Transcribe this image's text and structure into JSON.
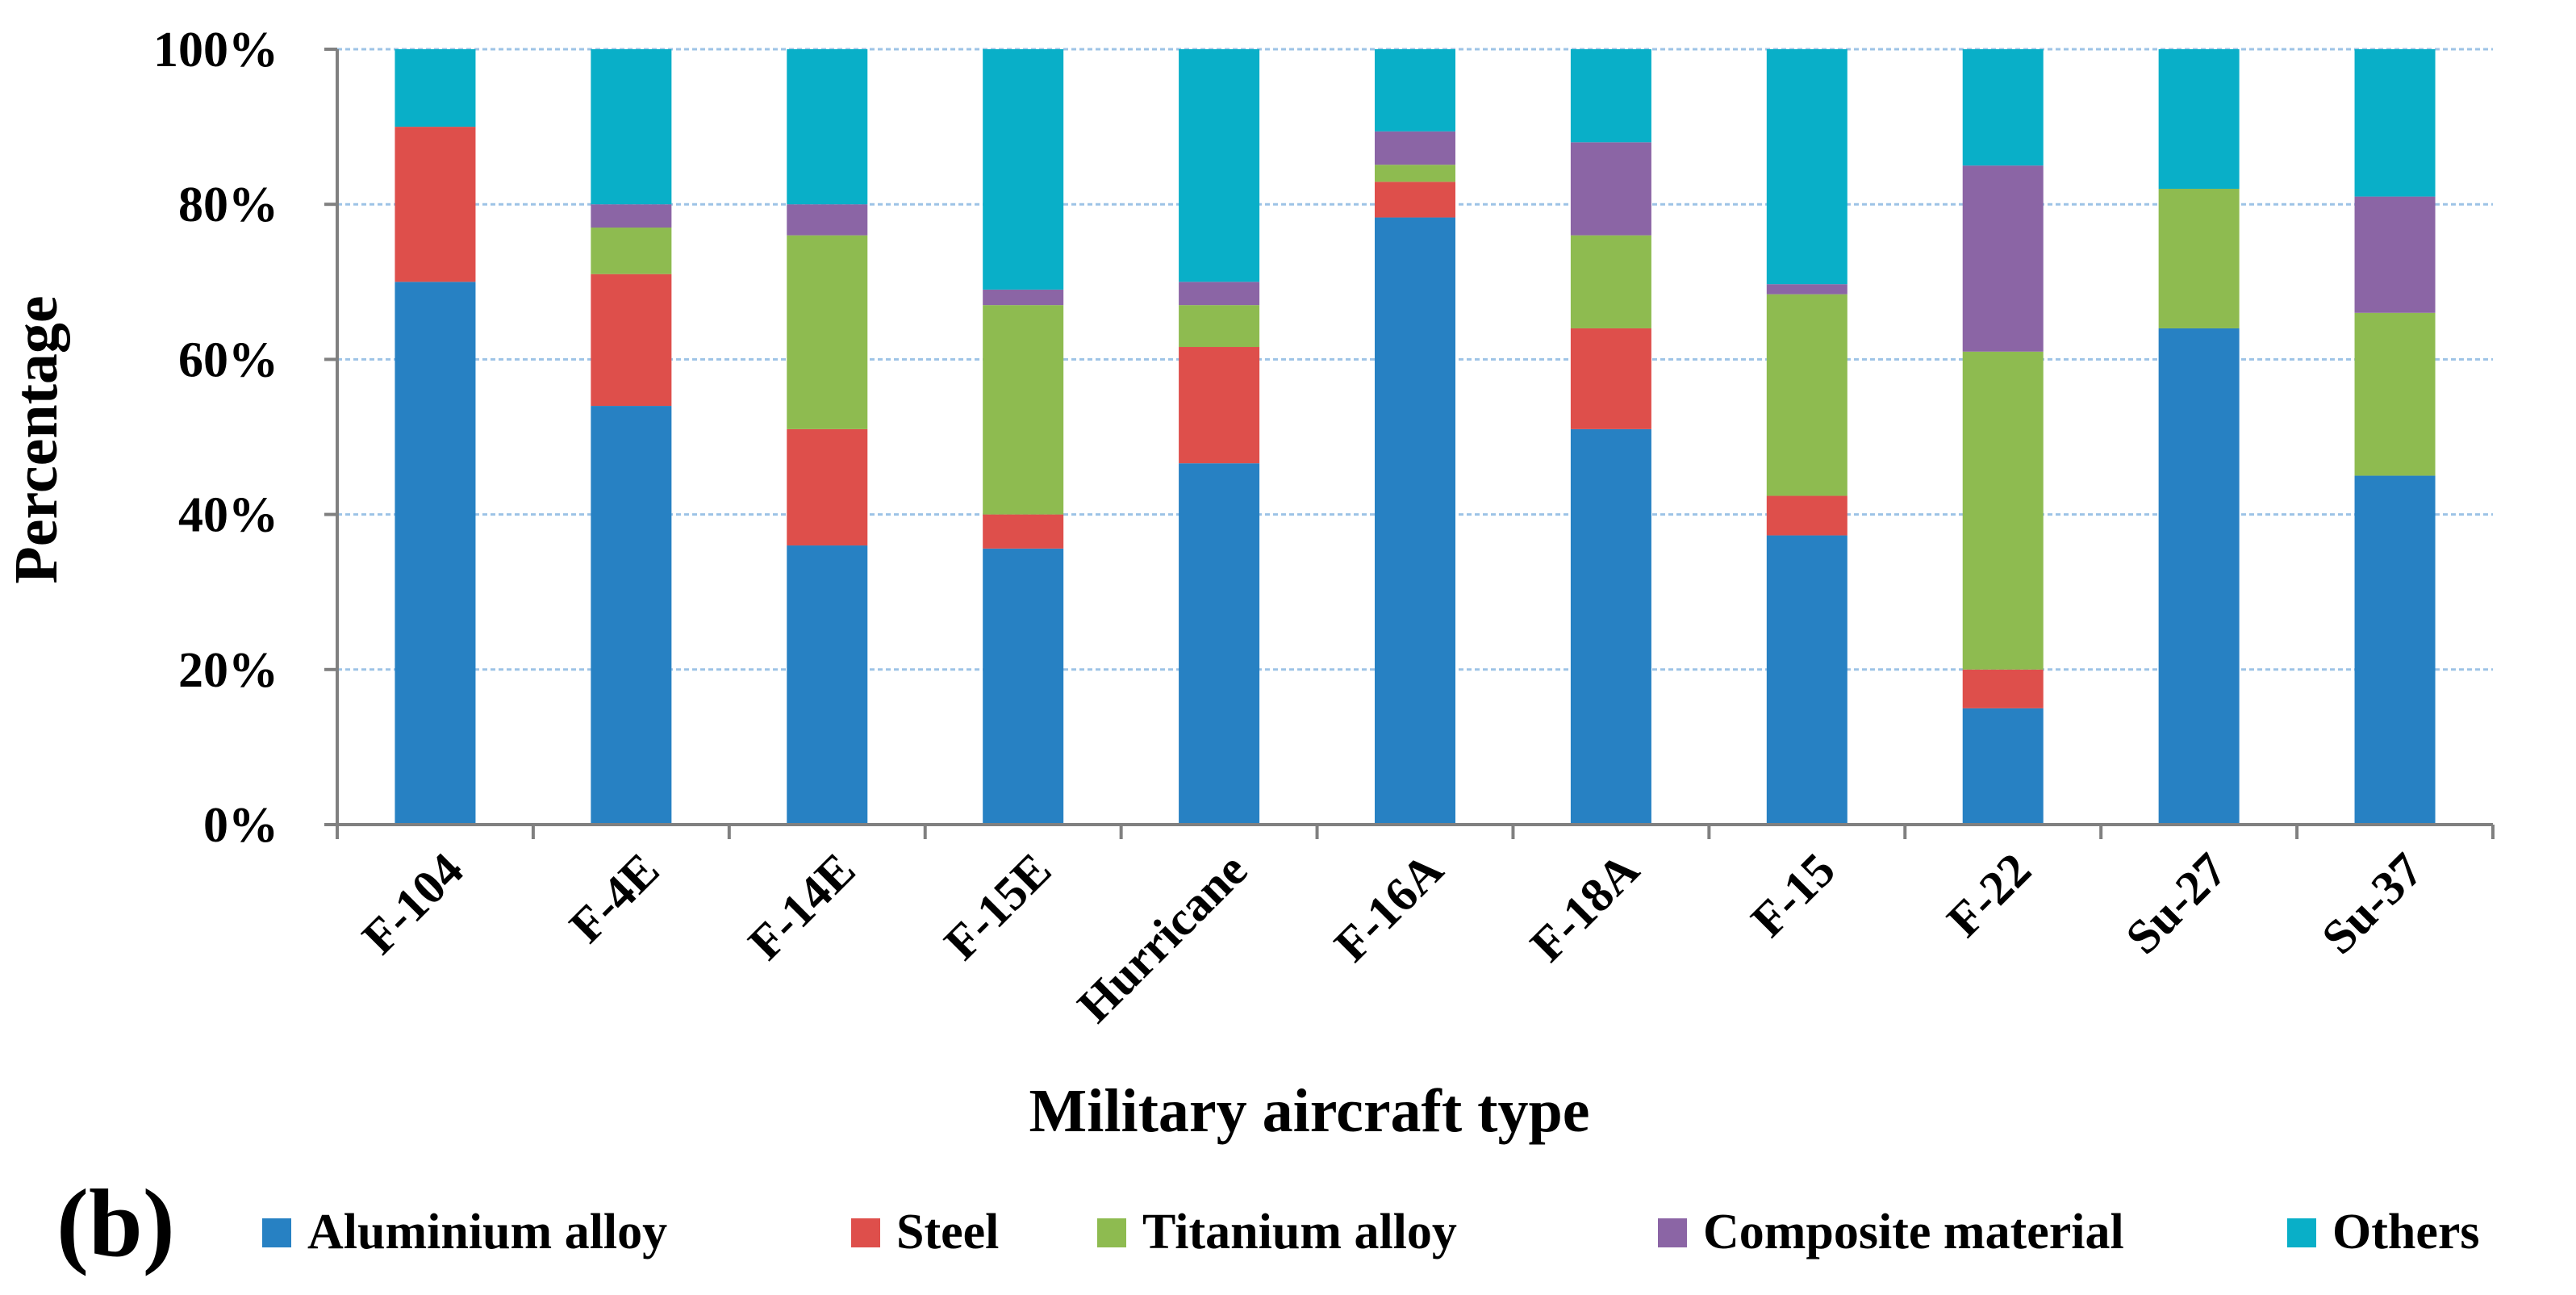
{
  "panel_label": "(b)",
  "chart_data": {
    "type": "bar",
    "stacked": true,
    "title": "",
    "xlabel": "Military aircraft type",
    "ylabel": "Percentage",
    "ylim": [
      0,
      100
    ],
    "y_ticks": [
      0,
      20,
      40,
      60,
      80,
      100
    ],
    "y_tick_labels": [
      "0%",
      "20%",
      "40%",
      "60%",
      "80%",
      "100%"
    ],
    "grid": true,
    "legend_position": "bottom",
    "categories": [
      "F-104",
      "F-4E",
      "F-14E",
      "F-15E",
      "Hurricane",
      "F-16A",
      "F-18A",
      "F-15",
      "F-22",
      "Su-27",
      "Su-37"
    ],
    "series": [
      {
        "name": "Aluminium alloy",
        "color": "#2781C3",
        "values": [
          70,
          54,
          36,
          35.6,
          46.6,
          78.3,
          51,
          37.3,
          15,
          64,
          45
        ]
      },
      {
        "name": "Steel",
        "color": "#DE4F4B",
        "values": [
          20,
          17,
          15,
          4.4,
          15,
          4.6,
          13,
          5.1,
          5,
          0,
          0
        ]
      },
      {
        "name": "Titanium alloy",
        "color": "#8EBB50",
        "values": [
          0,
          6,
          25,
          27,
          5.4,
          2.2,
          12,
          26,
          41,
          18,
          21
        ]
      },
      {
        "name": "Composite material",
        "color": "#8B65A5",
        "values": [
          0,
          3,
          4,
          2,
          3,
          4.3,
          12,
          1.3,
          24,
          0,
          15
        ]
      },
      {
        "name": "Others",
        "color": "#09AFC8",
        "values": [
          10,
          20,
          20,
          31,
          30,
          10.6,
          12,
          30.3,
          15,
          18,
          19
        ]
      }
    ]
  }
}
